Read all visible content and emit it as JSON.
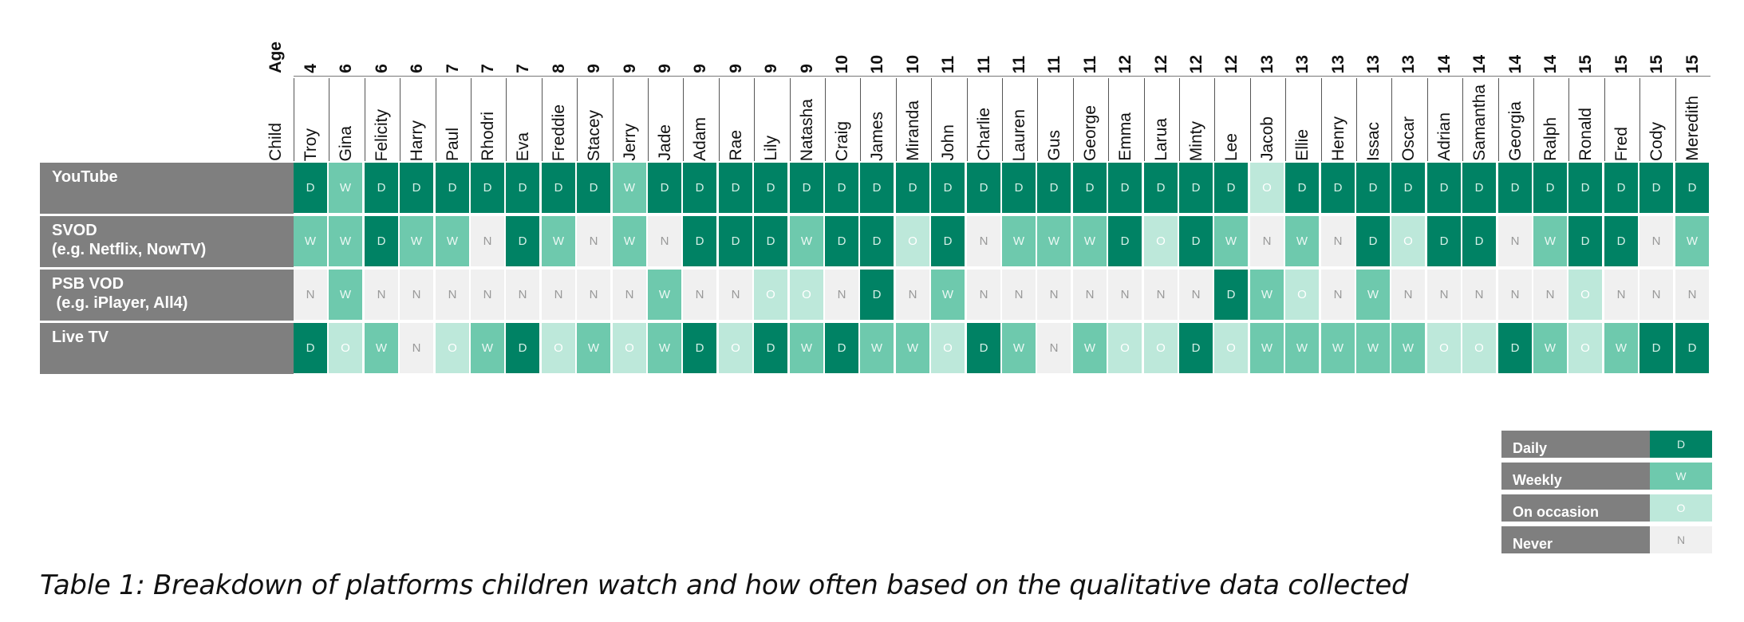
{
  "chart_data": {
    "type": "table",
    "age_label": "Age",
    "child_label": "Child",
    "children": [
      "Troy",
      "Gina",
      "Felicity",
      "Harry",
      "Paul",
      "Rhodri",
      "Eva",
      "Freddie",
      "Stacey",
      "Jerry",
      "Jade",
      "Adam",
      "Rae",
      "Lily",
      "Natasha",
      "Craig",
      "James",
      "Miranda",
      "John",
      "Charlie",
      "Lauren",
      "Gus",
      "George",
      "Emma",
      "Larua",
      "Minty",
      "Lee",
      "Jacob",
      "Ellie",
      "Henry",
      "Issac",
      "Oscar",
      "Adrian",
      "Samantha",
      "Georgia",
      "Ralph",
      "Ronald",
      "Fred",
      "Cody",
      "Meredith"
    ],
    "ages": [
      "4",
      "6",
      "6",
      "6",
      "7",
      "7",
      "7",
      "8",
      "9",
      "9",
      "9",
      "9",
      "9",
      "9",
      "9",
      "10",
      "10",
      "10",
      "11",
      "11",
      "11",
      "11",
      "11",
      "12",
      "12",
      "12",
      "12",
      "13",
      "13",
      "13",
      "13",
      "13",
      "14",
      "14",
      "14",
      "14",
      "15",
      "15",
      "15",
      "15"
    ],
    "rows": [
      {
        "label": "YouTube",
        "sublabel": "",
        "values": [
          "D",
          "W",
          "D",
          "D",
          "D",
          "D",
          "D",
          "D",
          "D",
          "W",
          "D",
          "D",
          "D",
          "D",
          "D",
          "D",
          "D",
          "D",
          "D",
          "D",
          "D",
          "D",
          "D",
          "D",
          "D",
          "D",
          "D",
          "O",
          "D",
          "D",
          "D",
          "D",
          "D",
          "D",
          "D",
          "D",
          "D",
          "D",
          "D",
          "D"
        ]
      },
      {
        "label": "SVOD",
        "sublabel": "(e.g. Netflix, NowTV)",
        "values": [
          "W",
          "W",
          "D",
          "W",
          "W",
          "N",
          "D",
          "W",
          "N",
          "W",
          "N",
          "D",
          "D",
          "D",
          "W",
          "D",
          "D",
          "O",
          "D",
          "N",
          "W",
          "W",
          "W",
          "D",
          "O",
          "D",
          "W",
          "N",
          "W",
          "N",
          "D",
          "O",
          "D",
          "D",
          "N",
          "W",
          "D",
          "D",
          "N",
          "W"
        ]
      },
      {
        "label": "PSB VOD",
        "sublabel": " (e.g. iPlayer, All4)",
        "values": [
          "N",
          "W",
          "N",
          "N",
          "N",
          "N",
          "N",
          "N",
          "N",
          "N",
          "W",
          "N",
          "N",
          "O",
          "O",
          "N",
          "D",
          "N",
          "W",
          "N",
          "N",
          "N",
          "N",
          "N",
          "N",
          "N",
          "D",
          "W",
          "O",
          "N",
          "W",
          "N",
          "N",
          "N",
          "N",
          "N",
          "O",
          "N",
          "N",
          "N"
        ]
      },
      {
        "label": "Live TV",
        "sublabel": "",
        "values": [
          "D",
          "O",
          "W",
          "N",
          "O",
          "W",
          "D",
          "O",
          "W",
          "O",
          "W",
          "D",
          "O",
          "D",
          "W",
          "D",
          "W",
          "W",
          "O",
          "D",
          "W",
          "N",
          "W",
          "O",
          "O",
          "D",
          "O",
          "W",
          "W",
          "W",
          "W",
          "W",
          "O",
          "O",
          "D",
          "W",
          "O",
          "W",
          "D",
          "D"
        ]
      }
    ],
    "legend": [
      {
        "code": "D",
        "label": "Daily",
        "color": "#008264"
      },
      {
        "code": "W",
        "label": "Weekly",
        "color": "#6ec9ad"
      },
      {
        "code": "O",
        "label": "On occasion",
        "color": "#bde8da"
      },
      {
        "code": "N",
        "label": "Never",
        "color": "#f0f0f0"
      }
    ]
  },
  "caption": "Table 1: Breakdown of platforms children watch and how often based on the qualitative data collected"
}
